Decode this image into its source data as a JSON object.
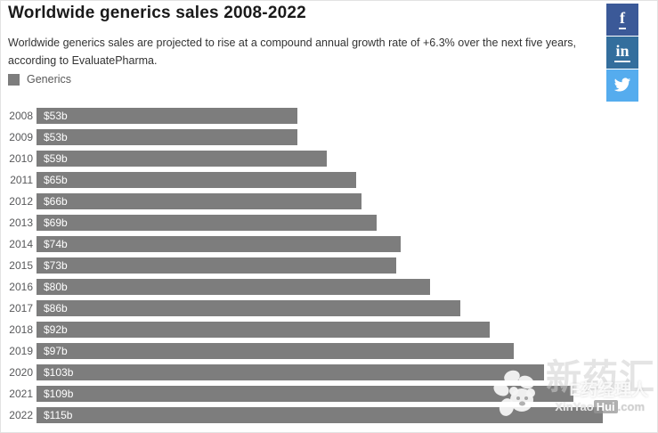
{
  "header": {
    "title": "Worldwide generics sales 2008-2022",
    "subtitle": "Worldwide generics sales are projected to rise at a compound annual growth rate of +6.3% over the next five years, according to EvaluatePharma."
  },
  "legend": {
    "label": "Generics",
    "swatch_color": "#7d7d7d"
  },
  "social": {
    "facebook": {
      "label": "f",
      "color": "#3b5998"
    },
    "linkedin": {
      "label": "in",
      "color": "#336e9d"
    },
    "twitter": {
      "color": "#55acee"
    }
  },
  "chart_data": {
    "type": "bar",
    "orientation": "horizontal",
    "title": "Worldwide generics sales 2008-2022",
    "series_name": "Generics",
    "categories": [
      "2008",
      "2009",
      "2010",
      "2011",
      "2012",
      "2013",
      "2014",
      "2015",
      "2016",
      "2017",
      "2018",
      "2019",
      "2020",
      "2021",
      "2022"
    ],
    "values": [
      53,
      53,
      59,
      65,
      66,
      69,
      74,
      73,
      80,
      86,
      92,
      97,
      103,
      109,
      115
    ],
    "value_labels": [
      "$53b",
      "$53b",
      "$59b",
      "$65b",
      "$66b",
      "$69b",
      "$74b",
      "$73b",
      "$80b",
      "$86b",
      "$92b",
      "$97b",
      "$103b",
      "$109b",
      "$115b"
    ],
    "unit": "$ billions",
    "xlim": [
      0,
      115
    ],
    "bar_color": "#7d7d7d",
    "grid": false,
    "legend_position": "top-left",
    "value_label_position": "inside-start"
  },
  "watermark": {
    "big_text": "新药汇",
    "mid_text": "E药经理人",
    "site_pre": "XinYao",
    "site_chip": "Hui",
    "site_post": ".com"
  }
}
